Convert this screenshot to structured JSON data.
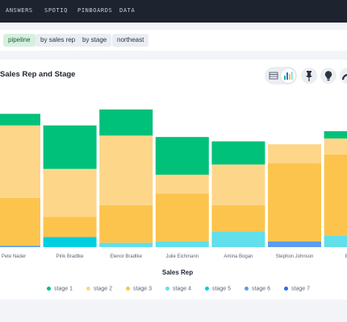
{
  "nav": {
    "items": [
      "ANSWERS",
      "SPOTIQ",
      "PINBOARDS",
      "DATA"
    ]
  },
  "search": {
    "tokens": [
      "pipeline",
      "by sales rep",
      "by stage",
      "northeast"
    ]
  },
  "toolbar": {
    "icons": [
      "table-icon",
      "bar-chart-icon",
      "pin-icon",
      "lightbulb-icon",
      "more-icon"
    ]
  },
  "colors": {
    "stage 1": "#00c17a",
    "stage 2": "#fdd68a",
    "stage 3": "#fcc44d",
    "stage 4": "#61dfea",
    "stage 5": "#00cfe0",
    "stage 6": "#5c9cf0",
    "stage 7": "#2a6fe0"
  },
  "chart_data": {
    "type": "bar",
    "stacked": true,
    "title": "Sales Rep and Stage",
    "xlabel": "Sales Rep",
    "ylabel": "",
    "grid": false,
    "legend_position": "bottom",
    "y_range": [
      0,
      100
    ],
    "categories": [
      "Pete Nader",
      "Pink Bradtke",
      "Elenor Bradtke",
      "Julie Eichmann",
      "Amina Bogan",
      "Stephon Johnson",
      "Boris"
    ],
    "series": [
      {
        "name": "stage 1",
        "values": [
          8,
          30,
          18,
          26,
          16,
          0,
          5
        ]
      },
      {
        "name": "stage 2",
        "values": [
          50,
          33,
          48,
          13,
          28,
          13,
          11
        ]
      },
      {
        "name": "stage 3",
        "values": [
          33,
          14,
          26,
          33,
          18,
          54,
          56
        ]
      },
      {
        "name": "stage 4",
        "values": [
          0,
          0,
          3,
          4,
          11,
          0,
          8
        ]
      },
      {
        "name": "stage 5",
        "values": [
          0,
          7,
          0,
          0,
          0,
          0,
          0
        ]
      },
      {
        "name": "stage 6",
        "values": [
          1,
          0,
          0,
          0,
          0,
          4,
          0
        ]
      },
      {
        "name": "stage 7",
        "values": [
          0,
          0,
          0,
          0,
          0,
          0,
          0
        ]
      }
    ]
  }
}
